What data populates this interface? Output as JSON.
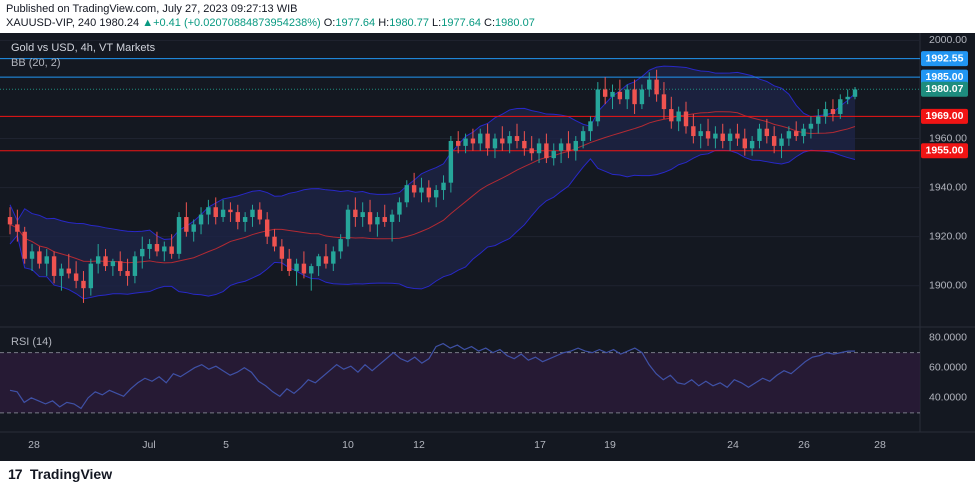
{
  "header": {
    "published_text": "Published on TradingView.com, July 27, 2023 09:27:13 WIB",
    "symbol": "XAUUSD-VIP, 240",
    "last_price": "1980.24",
    "change_arrow": "▲",
    "change": "+0.41 (+0.02070884873954238%)",
    "o_label": "O:",
    "o_value": "1977.64",
    "h_label": "H:",
    "h_value": "1980.77",
    "l_label": "L:",
    "l_value": "1977.64",
    "c_label": "C:",
    "c_value": "1980.07"
  },
  "legend": {
    "main": "Gold vs USD, 4h, VT Markets",
    "bb": "BB (20, 2)",
    "rsi": "RSI (14)"
  },
  "footer": {
    "logo_mark": "17",
    "logo_text": "TradingView"
  },
  "colors": {
    "bg": "#141821",
    "up": "#26a69a",
    "down": "#ef5350",
    "bb_band": "#2828c8",
    "bb_fill": "#1e2448",
    "bb_basis": "#b22a33",
    "hline_red": "#f01414",
    "hline_blue": "#2196f3",
    "price_label": "#1e8c7e",
    "rsi_line": "#3f51a6",
    "rsi_band": "#2a1c3a",
    "grid": "#1f2330",
    "axis_text": "#b2b5be"
  },
  "chart_data": [
    {
      "type": "candlestick",
      "title": "Gold vs USD, 4h, VT Markets",
      "indicator": "BB (20, 2)",
      "x_ticks": [
        "28",
        "Jul",
        "5",
        "10",
        "12",
        "17",
        "19",
        "24",
        "26",
        "28"
      ],
      "y_ticks": [
        "1900.00",
        "1920.00",
        "1940.00",
        "1960.00",
        "2000.00"
      ],
      "ylim": [
        1884,
        2003
      ],
      "horizontal_lines": [
        {
          "value": 1992.55,
          "label": "1992.55",
          "color": "#2196f3"
        },
        {
          "value": 1985.0,
          "label": "1985.00",
          "color": "#2196f3"
        },
        {
          "value": 1969.0,
          "label": "1969.00",
          "color": "#f01414"
        },
        {
          "value": 1955.0,
          "label": "1955.00",
          "color": "#f01414"
        }
      ],
      "last_price": {
        "value": 1980.07,
        "label": "1980.07"
      },
      "candles": [
        [
          1928,
          1932,
          1921,
          1925
        ],
        [
          1925,
          1931,
          1918,
          1922
        ],
        [
          1922,
          1924,
          1909,
          1911
        ],
        [
          1911,
          1917,
          1906,
          1914
        ],
        [
          1914,
          1916,
          1907,
          1909
        ],
        [
          1909,
          1915,
          1904,
          1912
        ],
        [
          1912,
          1914,
          1901,
          1904
        ],
        [
          1904,
          1909,
          1898,
          1907
        ],
        [
          1907,
          1913,
          1903,
          1905
        ],
        [
          1905,
          1910,
          1899,
          1902
        ],
        [
          1902,
          1906,
          1893,
          1899
        ],
        [
          1899,
          1911,
          1896,
          1909
        ],
        [
          1909,
          1917,
          1905,
          1912
        ],
        [
          1912,
          1915,
          1906,
          1908
        ],
        [
          1908,
          1911,
          1904,
          1910
        ],
        [
          1910,
          1914,
          1904,
          1906
        ],
        [
          1906,
          1911,
          1900,
          1904
        ],
        [
          1904,
          1914,
          1901,
          1912
        ],
        [
          1912,
          1920,
          1907,
          1915
        ],
        [
          1915,
          1919,
          1911,
          1917
        ],
        [
          1917,
          1922,
          1912,
          1914
        ],
        [
          1914,
          1918,
          1910,
          1916
        ],
        [
          1916,
          1921,
          1911,
          1913
        ],
        [
          1913,
          1930,
          1911,
          1928
        ],
        [
          1928,
          1934,
          1920,
          1922
        ],
        [
          1922,
          1927,
          1918,
          1925
        ],
        [
          1925,
          1932,
          1921,
          1929
        ],
        [
          1929,
          1935,
          1925,
          1932
        ],
        [
          1932,
          1936,
          1925,
          1928
        ],
        [
          1928,
          1935,
          1926,
          1931
        ],
        [
          1931,
          1934,
          1926,
          1930
        ],
        [
          1930,
          1933,
          1923,
          1926
        ],
        [
          1926,
          1930,
          1922,
          1928
        ],
        [
          1928,
          1933,
          1924,
          1931
        ],
        [
          1931,
          1934,
          1925,
          1927
        ],
        [
          1927,
          1930,
          1917,
          1920
        ],
        [
          1920,
          1923,
          1914,
          1916
        ],
        [
          1916,
          1919,
          1906,
          1911
        ],
        [
          1911,
          1915,
          1904,
          1906
        ],
        [
          1906,
          1911,
          1900,
          1909
        ],
        [
          1909,
          1914,
          1903,
          1905
        ],
        [
          1905,
          1909,
          1898,
          1908
        ],
        [
          1908,
          1913,
          1904,
          1912
        ],
        [
          1912,
          1917,
          1907,
          1909
        ],
        [
          1909,
          1916,
          1906,
          1914
        ],
        [
          1914,
          1921,
          1911,
          1919
        ],
        [
          1919,
          1933,
          1916,
          1931
        ],
        [
          1931,
          1936,
          1924,
          1928
        ],
        [
          1928,
          1934,
          1924,
          1930
        ],
        [
          1930,
          1935,
          1922,
          1925
        ],
        [
          1925,
          1930,
          1920,
          1928
        ],
        [
          1928,
          1933,
          1924,
          1926
        ],
        [
          1926,
          1931,
          1918,
          1929
        ],
        [
          1929,
          1936,
          1926,
          1934
        ],
        [
          1934,
          1943,
          1932,
          1941
        ],
        [
          1941,
          1946,
          1936,
          1938
        ],
        [
          1938,
          1944,
          1934,
          1940
        ],
        [
          1940,
          1943,
          1934,
          1936
        ],
        [
          1936,
          1941,
          1932,
          1939
        ],
        [
          1939,
          1945,
          1935,
          1942
        ],
        [
          1942,
          1961,
          1938,
          1959
        ],
        [
          1959,
          1963,
          1954,
          1957
        ],
        [
          1957,
          1962,
          1954,
          1960
        ],
        [
          1960,
          1964,
          1955,
          1958
        ],
        [
          1958,
          1964,
          1955,
          1962
        ],
        [
          1962,
          1966,
          1953,
          1956
        ],
        [
          1956,
          1962,
          1952,
          1960
        ],
        [
          1960,
          1965,
          1955,
          1958
        ],
        [
          1958,
          1963,
          1954,
          1961
        ],
        [
          1961,
          1966,
          1956,
          1959
        ],
        [
          1959,
          1963,
          1953,
          1956
        ],
        [
          1956,
          1961,
          1951,
          1954
        ],
        [
          1954,
          1960,
          1950,
          1958
        ],
        [
          1958,
          1962,
          1950,
          1952
        ],
        [
          1952,
          1958,
          1949,
          1955
        ],
        [
          1955,
          1960,
          1950,
          1958
        ],
        [
          1958,
          1963,
          1952,
          1955
        ],
        [
          1955,
          1961,
          1951,
          1959
        ],
        [
          1959,
          1965,
          1956,
          1963
        ],
        [
          1963,
          1969,
          1959,
          1967
        ],
        [
          1967,
          1983,
          1965,
          1980
        ],
        [
          1980,
          1985,
          1974,
          1977
        ],
        [
          1977,
          1982,
          1972,
          1979
        ],
        [
          1979,
          1984,
          1974,
          1976
        ],
        [
          1976,
          1982,
          1972,
          1980
        ],
        [
          1980,
          1984,
          1970,
          1974
        ],
        [
          1974,
          1982,
          1972,
          1980
        ],
        [
          1980,
          1987,
          1977,
          1984
        ],
        [
          1984,
          1988,
          1975,
          1978
        ],
        [
          1978,
          1983,
          1968,
          1972
        ],
        [
          1972,
          1977,
          1964,
          1967
        ],
        [
          1967,
          1973,
          1963,
          1971
        ],
        [
          1971,
          1975,
          1962,
          1965
        ],
        [
          1965,
          1970,
          1958,
          1961
        ],
        [
          1961,
          1966,
          1956,
          1963
        ],
        [
          1963,
          1968,
          1957,
          1960
        ],
        [
          1960,
          1965,
          1956,
          1962
        ],
        [
          1962,
          1966,
          1956,
          1959
        ],
        [
          1959,
          1964,
          1955,
          1962
        ],
        [
          1962,
          1966,
          1957,
          1960
        ],
        [
          1960,
          1964,
          1953,
          1956
        ],
        [
          1956,
          1961,
          1953,
          1959
        ],
        [
          1959,
          1966,
          1956,
          1964
        ],
        [
          1964,
          1968,
          1958,
          1961
        ],
        [
          1961,
          1965,
          1954,
          1957
        ],
        [
          1957,
          1962,
          1952,
          1960
        ],
        [
          1960,
          1965,
          1957,
          1963
        ],
        [
          1963,
          1967,
          1959,
          1961
        ],
        [
          1961,
          1966,
          1958,
          1964
        ],
        [
          1964,
          1969,
          1960,
          1966
        ],
        [
          1966,
          1972,
          1962,
          1969
        ],
        [
          1969,
          1975,
          1966,
          1972
        ],
        [
          1972,
          1976,
          1967,
          1970
        ],
        [
          1970,
          1978,
          1968,
          1976
        ],
        [
          1976,
          1980,
          1974,
          1977
        ],
        [
          1977,
          1981,
          1976,
          1980
        ]
      ]
    },
    {
      "type": "line",
      "title": "RSI (14)",
      "y_ticks": [
        "40.0000",
        "60.0000",
        "80.0000"
      ],
      "ylim": [
        20,
        85
      ],
      "bands": [
        30,
        70
      ],
      "values": [
        45,
        44,
        37,
        40,
        38,
        36,
        38,
        34,
        37,
        36,
        33,
        40,
        44,
        42,
        45,
        43,
        41,
        46,
        50,
        53,
        51,
        54,
        50,
        56,
        54,
        57,
        60,
        62,
        59,
        61,
        58,
        55,
        57,
        60,
        57,
        51,
        48,
        44,
        41,
        46,
        43,
        47,
        52,
        50,
        54,
        58,
        62,
        59,
        61,
        57,
        62,
        58,
        62,
        66,
        70,
        66,
        64,
        67,
        63,
        66,
        74,
        76,
        73,
        75,
        72,
        74,
        71,
        73,
        70,
        72,
        68,
        66,
        69,
        65,
        67,
        64,
        66,
        68,
        70,
        71,
        73,
        71,
        70,
        72,
        70,
        72,
        69,
        71,
        73,
        70,
        62,
        56,
        52,
        55,
        50,
        49,
        52,
        48,
        51,
        48,
        50,
        47,
        52,
        50,
        47,
        50,
        53,
        51,
        55,
        58,
        56,
        60,
        64,
        67,
        68,
        70,
        69,
        70,
        71,
        71
      ]
    }
  ]
}
